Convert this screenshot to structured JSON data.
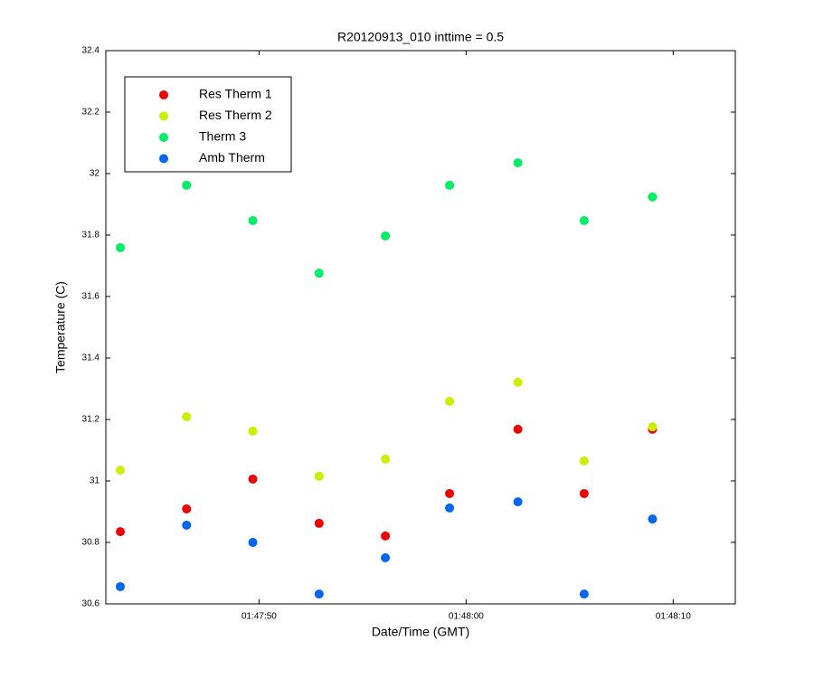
{
  "chart_data": {
    "type": "scatter",
    "title": "R20120913_010 inttime = 0.5",
    "x_label": "Date/Time (GMT)",
    "y_label": "Temperature (C)",
    "x": [
      6463.3,
      6466.5,
      6469.7,
      6472.9,
      6476.1,
      6479.2,
      6482.5,
      6485.7,
      6489.0
    ],
    "series": [
      {
        "name": "Res Therm 1",
        "color": "#ee0000",
        "values": [
          30.835,
          30.909,
          31.006,
          30.862,
          30.821,
          30.959,
          31.168,
          30.959,
          31.168
        ]
      },
      {
        "name": "Res Therm 2",
        "color": "#ccee00",
        "values": [
          31.035,
          31.209,
          31.162,
          31.015,
          31.071,
          31.259,
          31.321,
          31.065,
          31.176
        ]
      },
      {
        "name": "Therm 3",
        "color": "#00ee66",
        "values": [
          31.759,
          31.962,
          31.847,
          31.676,
          31.797,
          31.962,
          32.035,
          31.847,
          31.924
        ]
      },
      {
        "name": "Amb Therm",
        "color": "#0066ee",
        "values": [
          30.656,
          30.856,
          30.8,
          30.632,
          30.75,
          30.912,
          30.932,
          30.632,
          30.876
        ]
      }
    ],
    "xlim": [
      6462.6,
      6493.0
    ],
    "xticks": [
      {
        "value": 6470,
        "label": "01:47:50"
      },
      {
        "value": 6480,
        "label": "01:48:00"
      },
      {
        "value": 6490,
        "label": "01:48:10"
      }
    ],
    "ylim": [
      30.6,
      32.4
    ],
    "yticks": [
      30.6,
      30.8,
      31,
      31.2,
      31.4,
      31.6,
      31.8,
      32,
      32.2,
      32.4
    ],
    "legend": "upper-left",
    "grid": false
  }
}
